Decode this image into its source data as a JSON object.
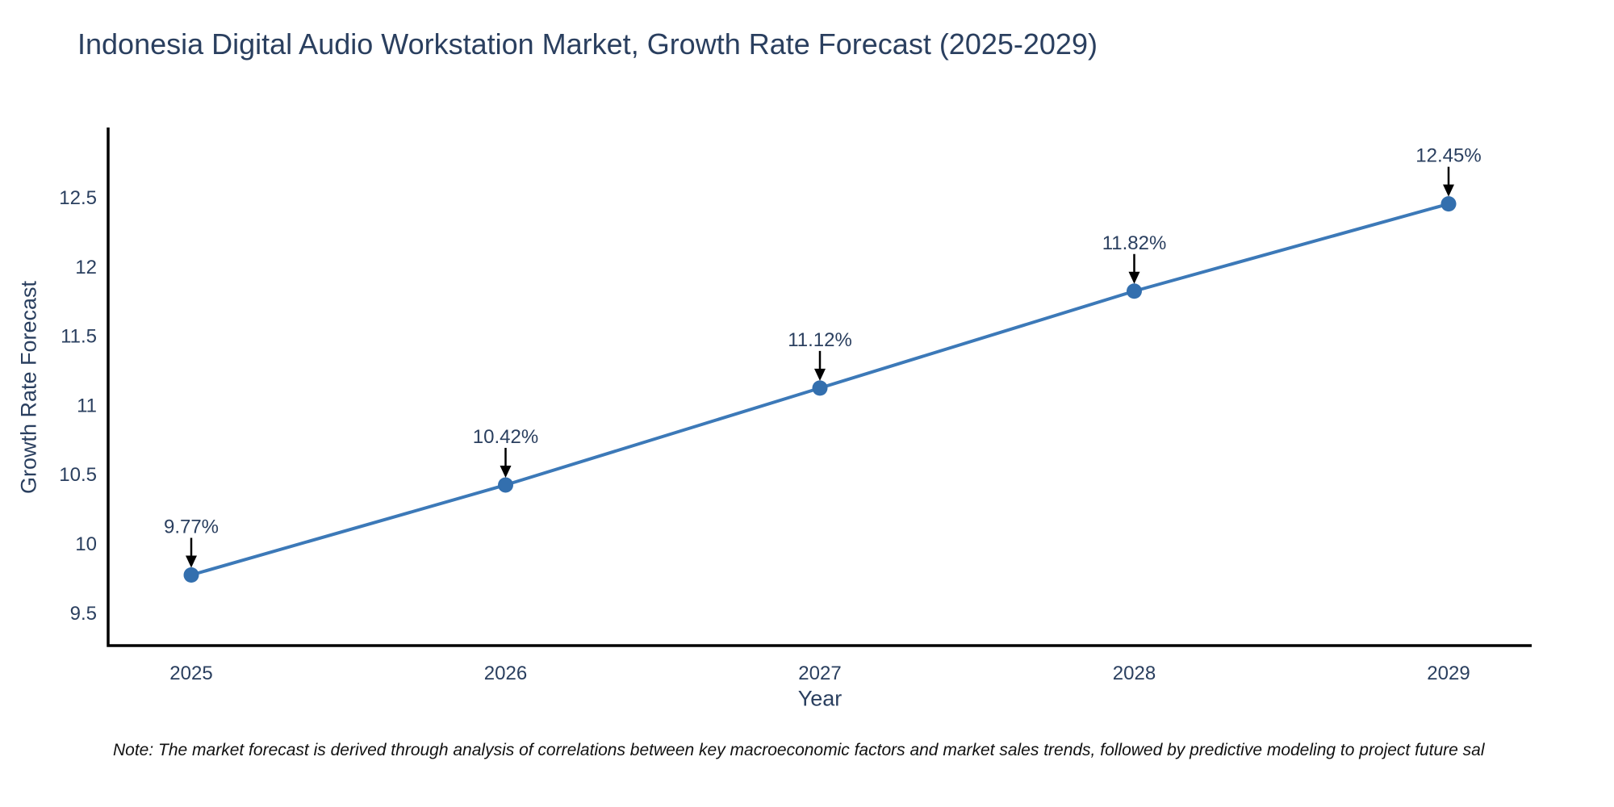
{
  "chart_data": {
    "type": "line",
    "title": "Indonesia Digital Audio Workstation Market, Growth Rate Forecast (2025-2029)",
    "x": [
      "2025",
      "2026",
      "2027",
      "2028",
      "2029"
    ],
    "series": [
      {
        "name": "Growth Rate Forecast",
        "values": [
          9.77,
          10.42,
          11.12,
          11.82,
          12.45
        ]
      }
    ],
    "point_labels": [
      "9.77%",
      "10.42%",
      "11.12%",
      "11.82%",
      "12.45%"
    ],
    "xlabel": "Year",
    "ylabel": "Growth Rate Forecast",
    "yticks": [
      9.5,
      10,
      10.5,
      11,
      11.5,
      12,
      12.5
    ],
    "ylim": [
      9.26,
      12.99
    ],
    "grid": false,
    "legend_position": "none",
    "annotation_style": "black down-arrow from label to marker",
    "colors": {
      "line": "#3c79b8",
      "marker": "#336fae",
      "axis": "#000000",
      "text": "#2a3f5f",
      "arrow": "#000000",
      "background": "#ffffff"
    }
  },
  "footnote": {
    "text": "Note: The market forecast is derived through analysis of correlations between key macroeconomic factors and market sales trends, followed by predictive modeling to project future sal"
  }
}
